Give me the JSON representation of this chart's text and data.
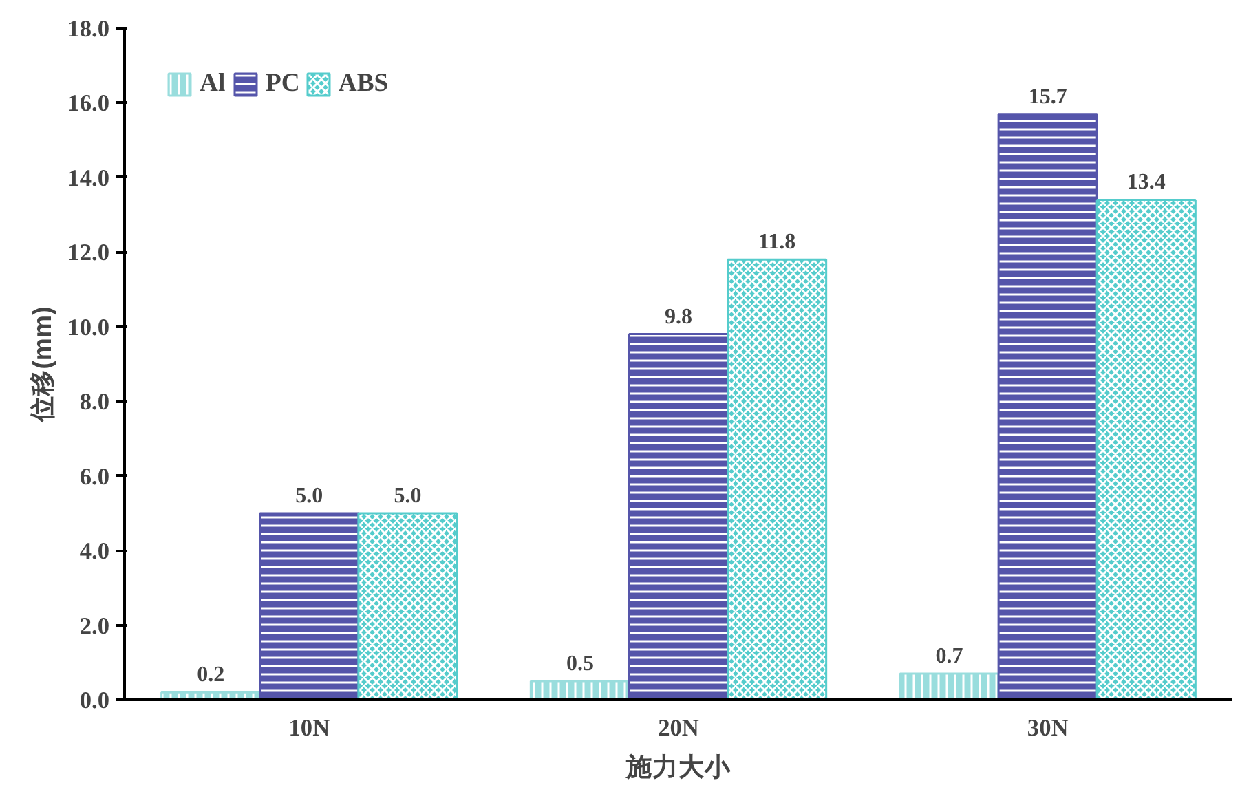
{
  "chart_data": {
    "type": "bar",
    "xlabel": "施力大小",
    "ylabel": "位移(mm)",
    "categories": [
      "10N",
      "20N",
      "30N"
    ],
    "series": [
      {
        "name": "Al",
        "color": "#99dddd",
        "values": [
          0.2,
          0.5,
          0.7
        ],
        "value_labels": [
          "0.2",
          "0.5",
          "0.7"
        ]
      },
      {
        "name": "PC",
        "color": "#5555aa",
        "values": [
          5.0,
          9.8,
          15.7
        ],
        "value_labels": [
          "5.0",
          "9.8",
          "15.7"
        ]
      },
      {
        "name": "ABS",
        "color": "#55cccc",
        "values": [
          5.0,
          11.8,
          13.4
        ],
        "value_labels": [
          "5.0",
          "11.8",
          "13.4"
        ]
      }
    ],
    "ylim": [
      0,
      18
    ],
    "yticks": [
      {
        "value": 0,
        "label": "0.0"
      },
      {
        "value": 2,
        "label": "2.0"
      },
      {
        "value": 4,
        "label": "4.0"
      },
      {
        "value": 6,
        "label": "6.0"
      },
      {
        "value": 8,
        "label": "8.0"
      },
      {
        "value": 10,
        "label": "10.0"
      },
      {
        "value": 12,
        "label": "12.0"
      },
      {
        "value": 14,
        "label": "14.0"
      },
      {
        "value": 16,
        "label": "16.0"
      },
      {
        "value": 18,
        "label": "18.0"
      }
    ],
    "grid": false,
    "legend": "top left"
  }
}
